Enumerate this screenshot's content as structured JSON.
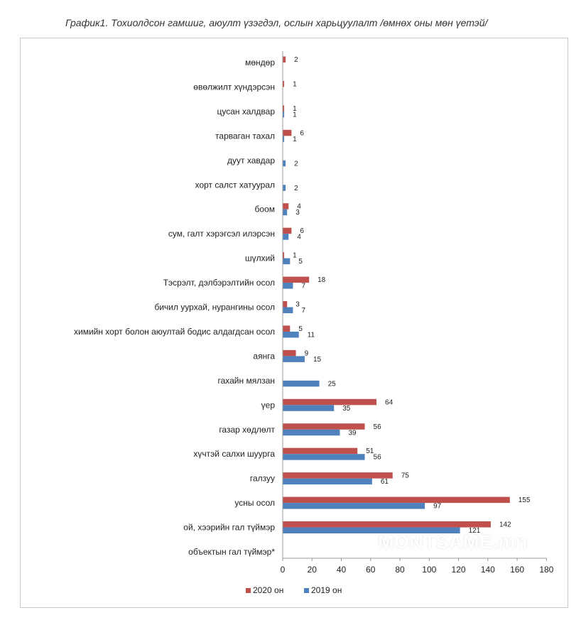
{
  "chart_data": {
    "type": "bar",
    "orientation": "horizontal",
    "title": "График1. Тохиолдсон гамшиг, аюулт үзэгдэл, ослын харьцуулалт /өмнөх оны мөн үетэй/",
    "categories": [
      "мөндөр",
      "өвөлжилт хүндэрсэн",
      "цусан халдвар",
      "тарваган тахал",
      "дуут хавдар",
      "хорт салст хатуурал",
      "боом",
      "сум, галт хэрэгсэл илэрсэн",
      "шүлхий",
      "Тэсрэлт, дэлбэрэлтийн осол",
      "бичил уурхай, нурангины осол",
      "химийн хорт болон аюултай бодис алдагдсан осол",
      "аянга",
      "гахайн мялзан",
      "үер",
      "газар хөдлөлт",
      "хүчтэй салхи шуурга",
      "галзуу",
      "усны осол",
      "ой, хээрийн гал түймэр",
      "объектын гал түймэр*"
    ],
    "series": [
      {
        "name": "2020 он",
        "color": "#c0504d",
        "values": [
          2,
          1,
          1,
          6,
          null,
          null,
          4,
          6,
          1,
          18,
          3,
          5,
          9,
          null,
          64,
          56,
          51,
          75,
          155,
          142,
          null
        ],
        "labels": [
          "2",
          "1",
          "1",
          "6",
          "",
          "",
          "4",
          "6",
          "1",
          "18",
          "3",
          "5",
          "9",
          "",
          "64",
          "56",
          "51",
          "75",
          "155",
          "142",
          ""
        ]
      },
      {
        "name": "2019 он",
        "color": "#4f81bd",
        "values": [
          null,
          null,
          1,
          1,
          2,
          2,
          3,
          4,
          5,
          7,
          7,
          11,
          15,
          25,
          35,
          39,
          56,
          61,
          97,
          121,
          null
        ],
        "labels": [
          "",
          "",
          "1",
          "1",
          "2",
          "2",
          "3",
          "4",
          "5",
          "7",
          "7",
          "11",
          "15",
          "25",
          "35",
          "39",
          "56",
          "61",
          "97",
          "121",
          ""
        ]
      }
    ],
    "xlim": [
      0,
      180
    ],
    "x_ticks": [
      "0",
      "20",
      "40",
      "60",
      "80",
      "100",
      "120",
      "140",
      "160",
      "180"
    ],
    "grid": false,
    "legend_position": "bottom"
  },
  "watermark": "MONTSAME.mn"
}
